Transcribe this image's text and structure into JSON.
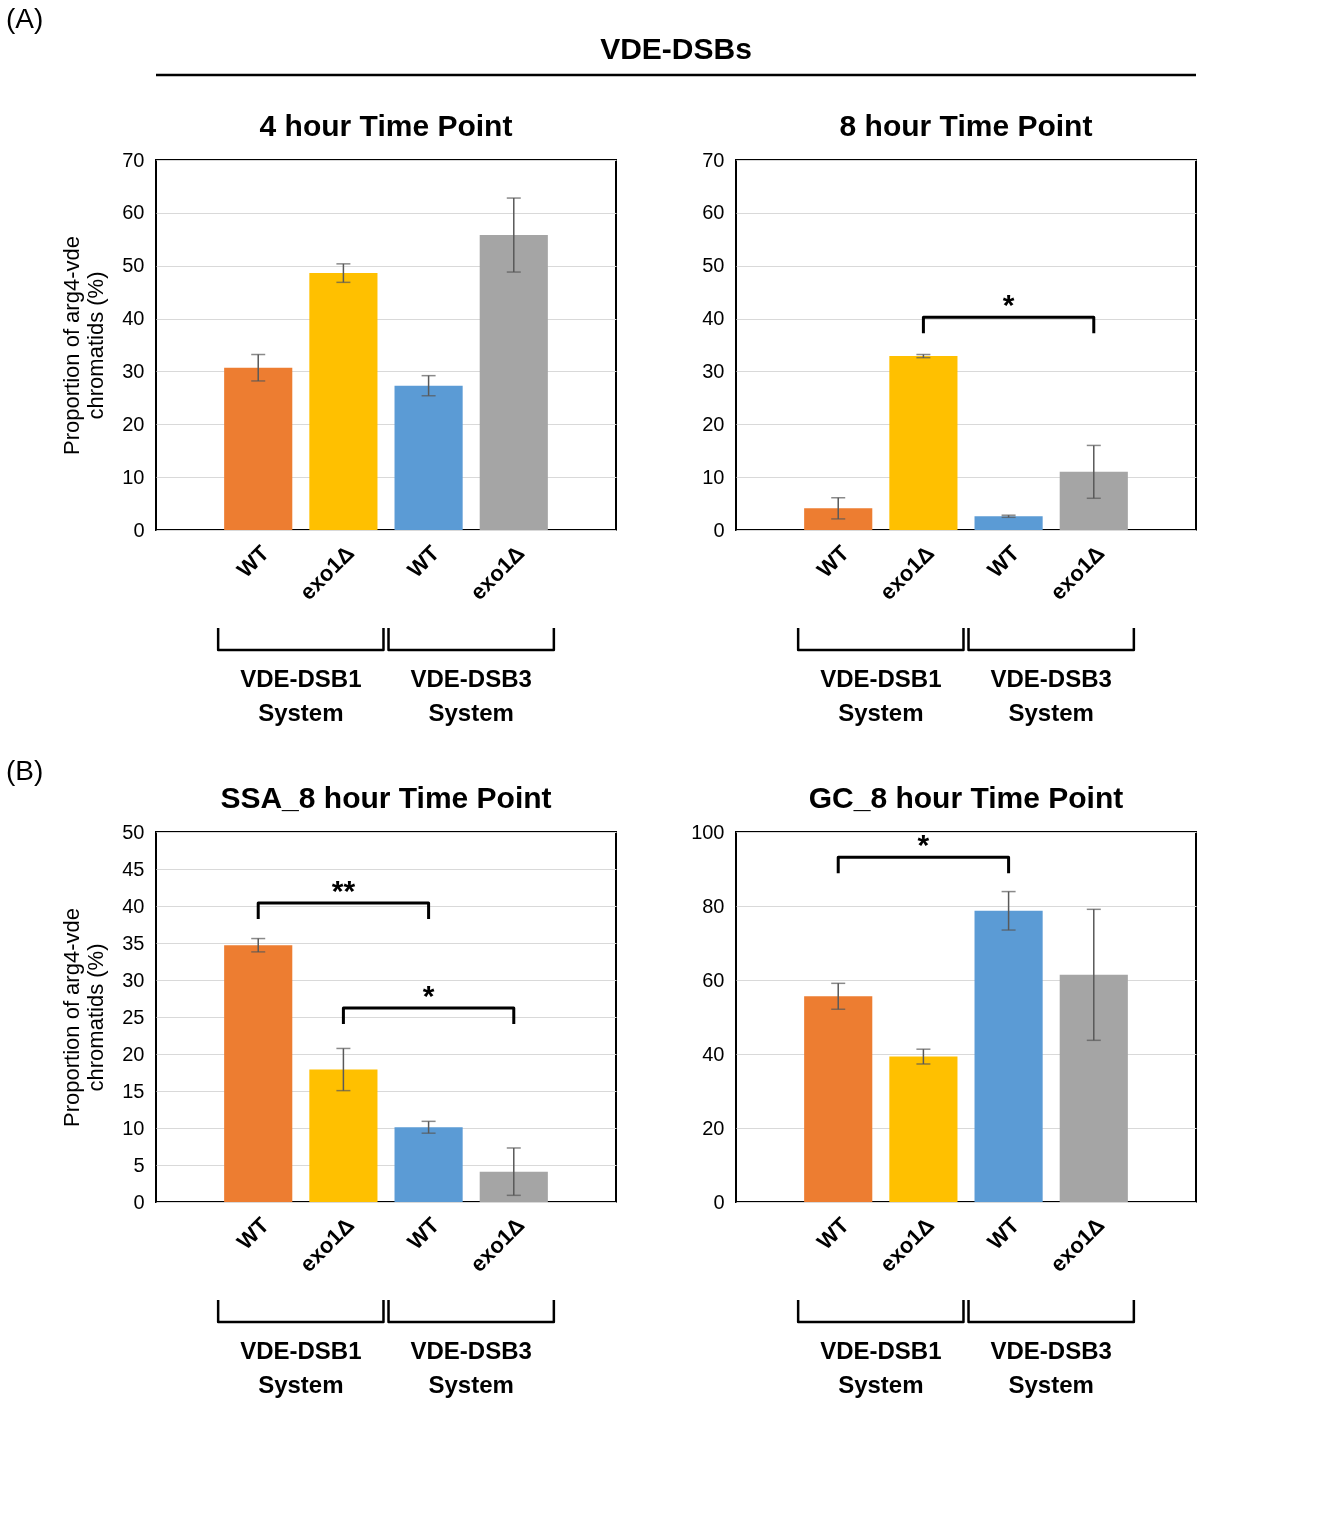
{
  "chart_data": [
    {
      "type": "bar",
      "title": "4 hour Time Point",
      "ylabel": "Proportion of arg4-vde chromatids (%)",
      "categories": [
        "WT",
        "exo1Δ",
        "WT",
        "exo1Δ"
      ],
      "values": [
        30.7,
        48.6,
        27.3,
        55.8
      ],
      "errors": [
        2.5,
        1.75,
        1.9,
        7
      ],
      "colors": [
        "#ed7d31",
        "#ffc000",
        "#5b9bd5",
        "#a5a5a5"
      ],
      "ylim": [
        0,
        70
      ],
      "yticks": [
        0,
        10,
        20,
        30,
        40,
        50,
        60,
        70
      ],
      "grid": "y",
      "annotations": [
        "(A)",
        "VDE-DSBs",
        "VDE-DSB1 System",
        "VDE-DSB3 System"
      ]
    },
    {
      "type": "bar",
      "title": "8 hour Time Point",
      "categories": [
        "WT",
        "exo1Δ",
        "WT",
        "exo1Δ"
      ],
      "values": [
        4.1,
        32.9,
        2.6,
        11.0
      ],
      "errors": [
        2,
        0.3,
        0.2,
        5
      ],
      "colors": [
        "#ed7d31",
        "#ffc000",
        "#5b9bd5",
        "#a5a5a5"
      ],
      "ylim": [
        0,
        70
      ],
      "yticks": [
        0,
        10,
        20,
        30,
        40,
        50,
        60,
        70
      ],
      "grid": "y",
      "annotations": [
        "VDE-DSB1 System",
        "VDE-DSB3 System",
        "*"
      ]
    },
    {
      "type": "bar",
      "title": "SSA_8 hour Time Point",
      "ylabel": "Proportion of arg4-vde chromatids (%)",
      "categories": [
        "WT",
        "exo1Δ",
        "WT",
        "exo1Δ"
      ],
      "values": [
        34.7,
        17.9,
        10.1,
        4.1
      ],
      "errors": [
        0.9,
        2.85,
        0.8,
        3.2
      ],
      "colors": [
        "#ed7d31",
        "#ffc000",
        "#5b9bd5",
        "#a5a5a5"
      ],
      "ylim": [
        0,
        50
      ],
      "yticks": [
        0,
        5,
        10,
        15,
        20,
        25,
        30,
        35,
        40,
        45,
        50
      ],
      "grid": "y",
      "annotations": [
        "(B)",
        "VDE-DSB1 System",
        "VDE-DSB3 System",
        "**",
        "*"
      ]
    },
    {
      "type": "bar",
      "title": "GC_8 hour Time Point",
      "categories": [
        "WT",
        "exo1Δ",
        "WT",
        "exo1Δ"
      ],
      "values": [
        55.6,
        39.3,
        78.7,
        61.4
      ],
      "errors": [
        3.5,
        2,
        5.2,
        17.7
      ],
      "colors": [
        "#ed7d31",
        "#ffc000",
        "#5b9bd5",
        "#a5a5a5"
      ],
      "ylim": [
        0,
        100
      ],
      "yticks": [
        0,
        20,
        40,
        60,
        80,
        100
      ],
      "grid": "y",
      "annotations": [
        "VDE-DSB1 System",
        "VDE-DSB3 System",
        "*"
      ]
    }
  ]
}
